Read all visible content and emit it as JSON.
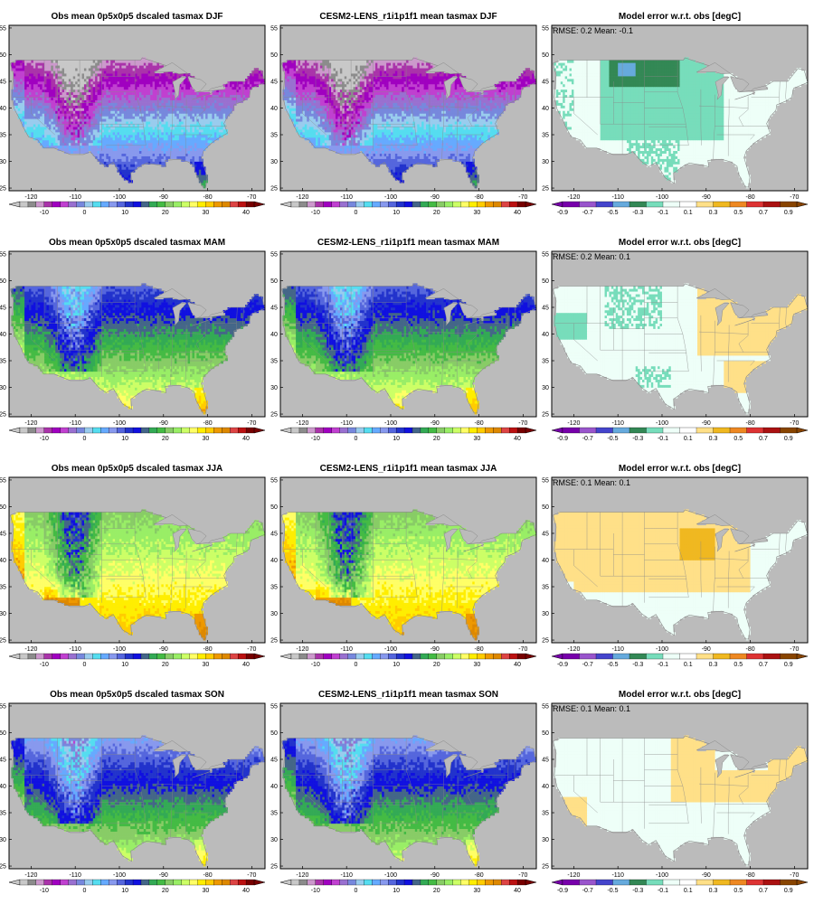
{
  "figure": {
    "rows": [
      {
        "season": "DJF",
        "obs_title": "Obs mean 0p5x0p5 dscaled tasmax DJF",
        "model_title": "CESM2-LENS_r1i1p1f1 mean tasmax DJF",
        "diff_title": "Model error w.r.t. obs [degC]",
        "rmse_label": "RMSE:",
        "rmse_value": "0.2",
        "mean_label": "Mean:",
        "mean_value": "-0.1"
      },
      {
        "season": "MAM",
        "obs_title": "Obs mean 0p5x0p5 dscaled tasmax MAM",
        "model_title": "CESM2-LENS_r1i1p1f1 mean tasmax MAM",
        "diff_title": "Model error w.r.t. obs [degC]",
        "rmse_label": "RMSE:",
        "rmse_value": "0.2",
        "mean_label": "Mean:",
        "mean_value": "0.1"
      },
      {
        "season": "JJA",
        "obs_title": "Obs mean 0p5x0p5 dscaled tasmax JJA",
        "model_title": "CESM2-LENS_r1i1p1f1 mean tasmax JJA",
        "diff_title": "Model error w.r.t. obs [degC]",
        "rmse_label": "RMSE:",
        "rmse_value": "0.1",
        "mean_label": "Mean:",
        "mean_value": "0.1"
      },
      {
        "season": "SON",
        "obs_title": "Obs mean 0p5x0p5 dscaled tasmax SON",
        "model_title": "CESM2-LENS_r1i1p1f1 mean tasmax SON",
        "diff_title": "Model error w.r.t. obs [degC]",
        "rmse_label": "RMSE:",
        "rmse_value": "0.1",
        "mean_label": "Mean:",
        "mean_value": "0.1"
      }
    ],
    "lon_ticks": [
      -120,
      -110,
      -100,
      -90,
      -80,
      -70
    ],
    "lon_range": [
      -125,
      -67
    ],
    "lat_ticks": [
      25,
      30,
      35,
      40,
      45,
      50,
      55
    ],
    "lat_range": [
      24.5,
      55.5
    ],
    "mean_colorbar": {
      "colors": [
        "#c8c8c8",
        "#8c8c8c",
        "#cc99cc",
        "#aa33aa",
        "#a000c0",
        "#c040d0",
        "#9970d0",
        "#7788dd",
        "#99ccee",
        "#55ddf0",
        "#66aaff",
        "#8899ee",
        "#5566dd",
        "#2233cc",
        "#1010e0",
        "#446688",
        "#33aa55",
        "#44bb44",
        "#88cc66",
        "#99ee66",
        "#ccff66",
        "#ffff66",
        "#ffee00",
        "#ffcc00",
        "#ee9900",
        "#dd8800",
        "#dd4444",
        "#bb1111",
        "#770000"
      ],
      "labels": [
        "-10",
        "0",
        "10",
        "20",
        "30",
        "40"
      ]
    },
    "diff_colorbar": {
      "colors": [
        "#7700aa",
        "#9955cc",
        "#4444cc",
        "#66aadd",
        "#338855",
        "#77ddbb",
        "#eefff8",
        "#ffffff",
        "#ffe088",
        "#f0b820",
        "#ee8822",
        "#dd3333",
        "#aa1111",
        "#884400"
      ],
      "labels": [
        "-0.9",
        "-0.7",
        "-0.5",
        "-0.3",
        "-0.1",
        "0.1",
        "0.3",
        "0.5",
        "0.7",
        "0.9"
      ]
    },
    "fields": {
      "DJF": {
        "south": 15,
        "north": -10,
        "west_bonus": 0,
        "southwest_heat": 0,
        "mountain": 8
      },
      "MAM": {
        "south": 30,
        "north": 10,
        "west_bonus": 2,
        "southwest_heat": 1,
        "mountain": 8
      },
      "JJA": {
        "south": 33,
        "north": 22,
        "west_bonus": 3,
        "southwest_heat": 7,
        "mountain": 9
      },
      "SON": {
        "south": 27,
        "north": 7,
        "west_bonus": 2,
        "southwest_heat": 1,
        "mountain": 8
      }
    },
    "colors": {
      "ocean": "#bbbbbb",
      "frame": "#000000",
      "boundary": "#888888"
    }
  }
}
